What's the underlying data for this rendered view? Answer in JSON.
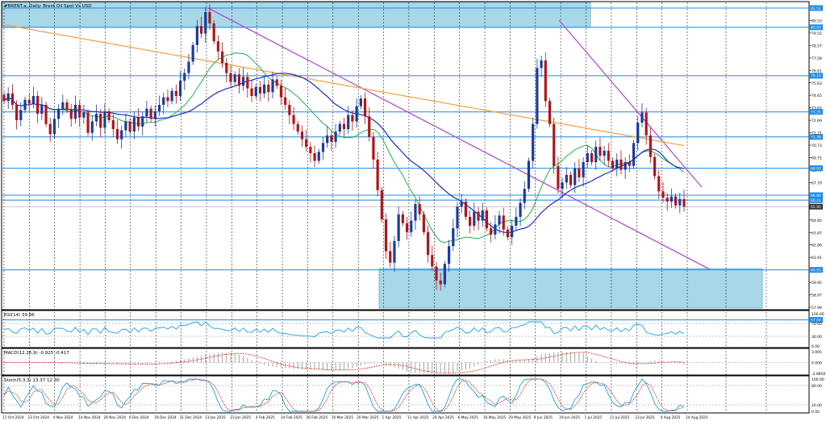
{
  "chart_data": [
    {
      "type": "candlestick",
      "title": "#BRENT.a, Daily: Brent Oil Spot Vs USD",
      "price_ticks": [
        "81.51",
        "80.53",
        "79.55",
        "78.57",
        "77.59",
        "76.61",
        "75.63",
        "74.65",
        "73.67",
        "72.69",
        "71.71",
        "70.73",
        "69.75",
        "68.77",
        "67.79",
        "66.81",
        "65.83",
        "64.85",
        "63.87",
        "62.89",
        "61.91",
        "60.93",
        "59.95",
        "58.97",
        "57.99"
      ],
      "level_labels": [
        "81.51",
        "80.00",
        "76.19",
        "73.35",
        "71.38",
        "68.92",
        "66.80",
        "66.41",
        "60.93",
        "57.00"
      ],
      "current_price": "65.90",
      "date_ticks": [
        "11 Oct 2024",
        "23 Oct 2024",
        "4 Nov 2024",
        "14 Nov 2024",
        "26 Nov 2024",
        "6 Dec 2024",
        "18 Dec 2024",
        "31 Dec 2024",
        "13 Jan 2025",
        "23 Jan 2025",
        "4 Feb 2025",
        "14 Feb 2025",
        "26 Feb 2025",
        "10 Mar 2025",
        "20 Mar 2025",
        "1 Apr 2025",
        "11 Apr 2025",
        "24 Apr 2025",
        "6 May 2025",
        "16 May 2025",
        "29 May 2025",
        "9 Jun 2025",
        "19 Jun 2025",
        "1 Jul 2025",
        "11 Jul 2025",
        "23 Jul 2025",
        "4 Aug 2025",
        "14 Aug 2025"
      ],
      "closes": [
        74.2,
        74.8,
        73.9,
        72.7,
        73.5,
        74.3,
        74.0,
        74.6,
        73.2,
        73.9,
        72.4,
        71.6,
        72.8,
        73.6,
        74.1,
        73.5,
        72.8,
        73.9,
        72.9,
        73.3,
        71.7,
        72.6,
        73.2,
        72.1,
        73.4,
        72.7,
        72.0,
        71.2,
        71.9,
        72.6,
        71.8,
        72.9,
        72.2,
        73.0,
        73.6,
        72.8,
        73.4,
        73.9,
        74.5,
        74.2,
        75.0,
        74.6,
        75.8,
        76.4,
        77.3,
        78.6,
        80.1,
        79.5,
        81.2,
        80.3,
        78.9,
        78.1,
        77.2,
        76.4,
        75.7,
        76.3,
        75.4,
        76.1,
        75.2,
        74.6,
        75.3,
        74.8,
        75.5,
        74.9,
        75.9,
        75.4,
        74.5,
        73.9,
        73.1,
        72.4,
        71.8,
        71.2,
        70.6,
        70.1,
        69.5,
        70.2,
        70.9,
        71.5,
        71.0,
        71.8,
        72.4,
        72.0,
        73.1,
        72.6,
        73.8,
        74.4,
        73.0,
        71.4,
        69.6,
        67.2,
        64.9,
        62.4,
        61.5,
        63.2,
        65.3,
        64.6,
        63.9,
        64.8,
        66.1,
        65.3,
        63.9,
        62.1,
        61.2,
        60.1,
        59.8,
        61.4,
        62.8,
        64.2,
        65.9,
        66.3,
        65.1,
        64.4,
        65.5,
        64.8,
        65.6,
        64.2,
        63.7,
        64.5,
        65.2,
        64.1,
        63.5,
        64.4,
        65.1,
        66.2,
        67.3,
        69.5,
        72.4,
        76.8,
        77.4,
        74.2,
        72.4,
        69.1,
        67.3,
        67.8,
        68.4,
        67.6,
        68.9,
        68.2,
        69.4,
        70.1,
        69.4,
        70.6,
        69.9,
        70.3,
        69.5,
        68.9,
        69.6,
        68.8,
        69.4,
        69.1,
        70.9,
        72.5,
        73.3,
        71.5,
        69.8,
        68.3,
        67.1,
        66.6,
        66.3,
        66.7,
        66.0,
        66.5,
        65.9
      ]
    },
    {
      "type": "line",
      "title": "RSI(14) 39.86",
      "ticks": [
        "100.00",
        "70.00",
        "30.00",
        "0.00"
      ]
    },
    {
      "type": "bar",
      "title": "MACD(12,26,9) -0.925 -0.417",
      "ticks": [
        "3.005",
        "0.000",
        "-2.9850"
      ]
    },
    {
      "type": "line",
      "title": "Stoch(5,3,3) 13.37 12.30",
      "ticks": [
        "100.00",
        "80.00",
        "20.00",
        "0.00"
      ]
    }
  ],
  "colors": {
    "up": "#1a3d99",
    "down": "#b0151b",
    "zone_fill": "#a8d8e8",
    "level_line": "#1e88e5",
    "trend": "#b450d0",
    "ma_green": "#22b14c",
    "ma_blue": "#1a2cd0",
    "ma_orange": "#f5a040",
    "osc_cyan": "#1aa5d8",
    "osc_red": "#e0302a"
  }
}
